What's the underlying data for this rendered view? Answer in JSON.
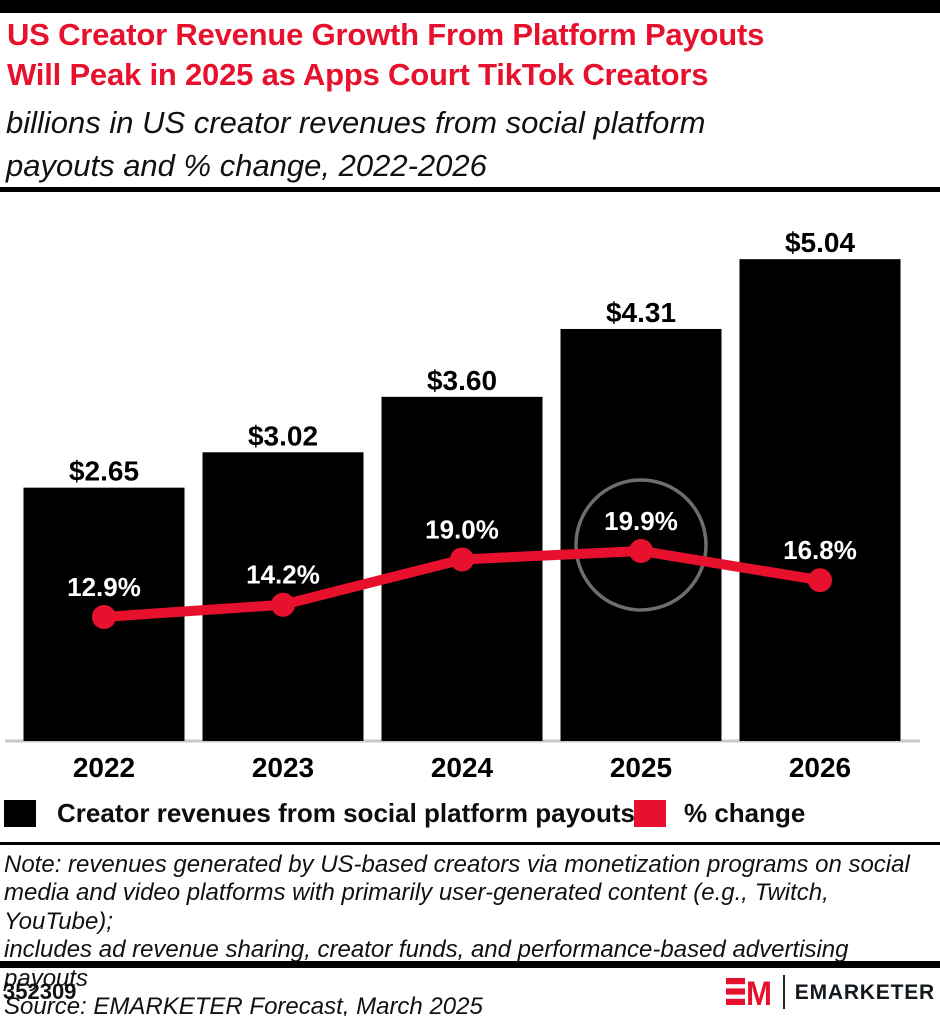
{
  "header": {
    "title_lines": [
      "US Creator Revenue Growth From Platform Payouts",
      "Will Peak in 2025 as Apps Court TikTok Creators"
    ],
    "subtitle_lines": [
      "billions in US creator revenues from social platform",
      "payouts and % change, 2022-2026"
    ],
    "title_color": "#e8112d"
  },
  "chart_data": {
    "type": "bar",
    "subtype": "bar-line-combo",
    "categories": [
      "2022",
      "2023",
      "2024",
      "2025",
      "2026"
    ],
    "series": [
      {
        "name": "Creator revenues from social platform payouts",
        "type": "bar",
        "unit": "billions of US dollars",
        "values": [
          2.65,
          3.02,
          3.6,
          4.31,
          5.04
        ],
        "value_labels": [
          "$2.65",
          "$3.02",
          "$3.60",
          "$4.31",
          "$5.04"
        ],
        "color": "#000000"
      },
      {
        "name": "% change",
        "type": "line",
        "unit": "percent",
        "values": [
          12.9,
          14.2,
          19.0,
          19.9,
          16.8
        ],
        "value_labels": [
          "12.9%",
          "14.2%",
          "19.0%",
          "19.9%",
          "16.8%"
        ],
        "color": "#e8112d"
      }
    ],
    "highlight": {
      "category": "2025",
      "shape": "circle",
      "color": "#6e6e6e"
    },
    "axis": {
      "x_labels": [
        "2022",
        "2023",
        "2024",
        "2025",
        "2026"
      ],
      "y_axis_shown": false,
      "baseline_color": "#c9c9c9"
    },
    "grid": false,
    "legend_position": "bottom",
    "bar_label_color": "#000000",
    "line_label_color": "#ffffff"
  },
  "notes": {
    "lines": [
      "Note: revenues generated by US-based creators via monetization programs on social",
      "media and video platforms with primarily user-generated content (e.g., Twitch, YouTube);",
      "includes ad revenue sharing, creator funds, and performance-based advertising payouts"
    ],
    "source": "Source: EMARKETER Forecast, March 2025"
  },
  "footer": {
    "chart_id": "352309",
    "brand_monogram": "EM",
    "brand_name": "EMARKETER",
    "brand_color": "#e8112d"
  }
}
